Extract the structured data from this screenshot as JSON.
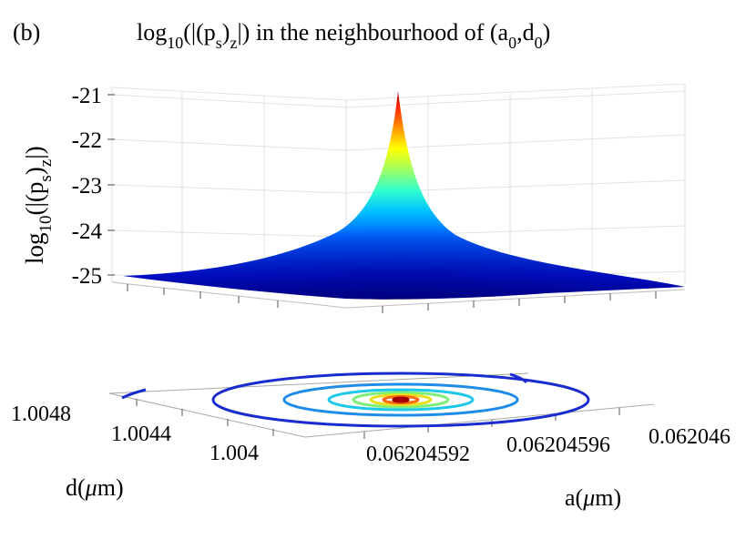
{
  "chart_data": {
    "type": "surface-3d",
    "panel_label": "(b)",
    "title": {
      "prefix": "log",
      "sub1": "10",
      "mid1": "(|(p",
      "sub2": "s",
      "mid2": ")",
      "sub3": "z",
      "mid3": "|) in the neighbourhood of (a",
      "sub4": "0",
      "mid4": ",d",
      "sub5": "0",
      "suffix": ")"
    },
    "zlabel": {
      "prefix": "log",
      "sub1": "10",
      "mid1": "(|(p",
      "sub2": "s",
      "mid2": ")",
      "sub3": "z",
      "suffix": "|)"
    },
    "xlabel": {
      "pre": "a(",
      "mu": "μ",
      "post": "m)"
    },
    "ylabel": {
      "pre": "d(",
      "mu": "μ",
      "post": "m)"
    },
    "z_ticks": [
      "-21",
      "-22",
      "-23",
      "-24",
      "-25"
    ],
    "z_values": [
      -21,
      -22,
      -23,
      -24,
      -25
    ],
    "zlim": [
      -25,
      -20.9
    ],
    "x_ticks": [
      "0.06204592",
      "0.06204596",
      "0.062046"
    ],
    "x_values": [
      0.06204592,
      0.06204596,
      0.062046
    ],
    "y_ticks": [
      "1.0048",
      "1.0044",
      "1.004"
    ],
    "y_values": [
      1.0048,
      1.0044,
      1.004
    ],
    "peak": {
      "a": 0.06204594,
      "d": 1.0044,
      "z": -20.9
    },
    "contour_levels": 7,
    "colormap": "jet",
    "grid": true
  }
}
